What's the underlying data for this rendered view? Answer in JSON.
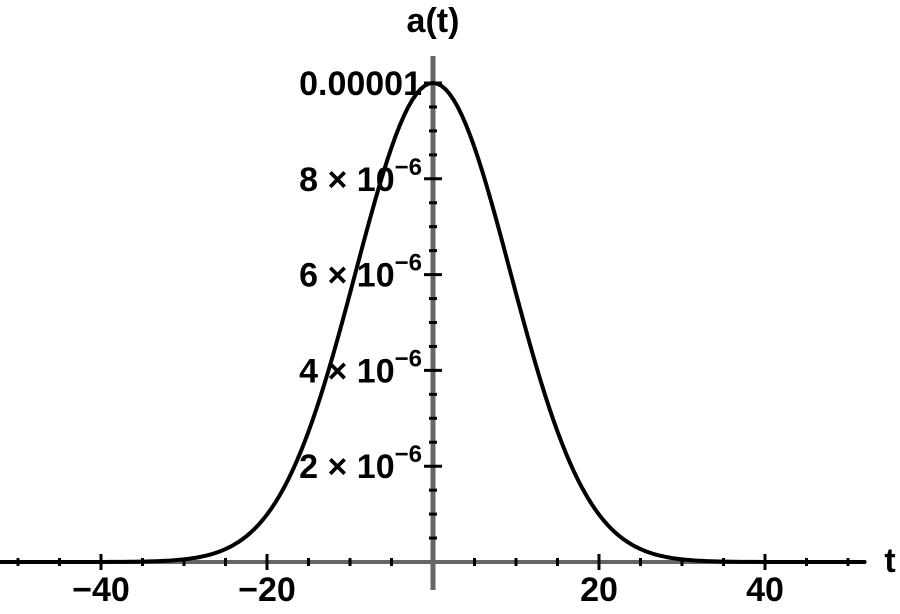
{
  "chart_data": {
    "type": "line",
    "title": "",
    "xlabel": "t",
    "ylabel": "a(t)",
    "xlim": [
      -52,
      52
    ],
    "ylim": [
      0,
      1.05e-05
    ],
    "x_ticks": [
      {
        "value": -40,
        "label": "−40"
      },
      {
        "value": -20,
        "label": "−20"
      },
      {
        "value": 20,
        "label": "20"
      },
      {
        "value": 40,
        "label": "40"
      }
    ],
    "y_ticks": [
      {
        "value": 2e-06,
        "mantissa": "2",
        "times": "×",
        "base": "10",
        "exponent": "−6"
      },
      {
        "value": 4e-06,
        "mantissa": "4",
        "times": "×",
        "base": "10",
        "exponent": "−6"
      },
      {
        "value": 6e-06,
        "mantissa": "6",
        "times": "×",
        "base": "10",
        "exponent": "−6"
      },
      {
        "value": 8e-06,
        "mantissa": "8",
        "times": "×",
        "base": "10",
        "exponent": "−6"
      },
      {
        "value": 1e-05,
        "label": "0.00001"
      }
    ],
    "series": [
      {
        "color": "#000000",
        "x": [
          -52,
          -44,
          -40,
          -36,
          -32,
          -28,
          -24,
          -20,
          -16,
          -12,
          -8,
          -4,
          0,
          4,
          8,
          12,
          16,
          20,
          24,
          28,
          32,
          36,
          40,
          44,
          52
        ],
        "y": [
          0,
          1e-08,
          2e-08,
          4e-08,
          1e-07,
          2.2e-07,
          4.4e-07,
          8.7e-07,
          1.7e-06,
          3.1e-06,
          5.2e-06,
          8.1e-06,
          1e-05,
          8.1e-06,
          5.2e-06,
          3.1e-06,
          1.7e-06,
          8.7e-07,
          4.4e-07,
          2.2e-07,
          1e-07,
          4e-08,
          2e-08,
          1e-08,
          0
        ]
      }
    ]
  },
  "colors": {
    "axis": "#666666",
    "curve": "#000000",
    "text": "#000000"
  }
}
